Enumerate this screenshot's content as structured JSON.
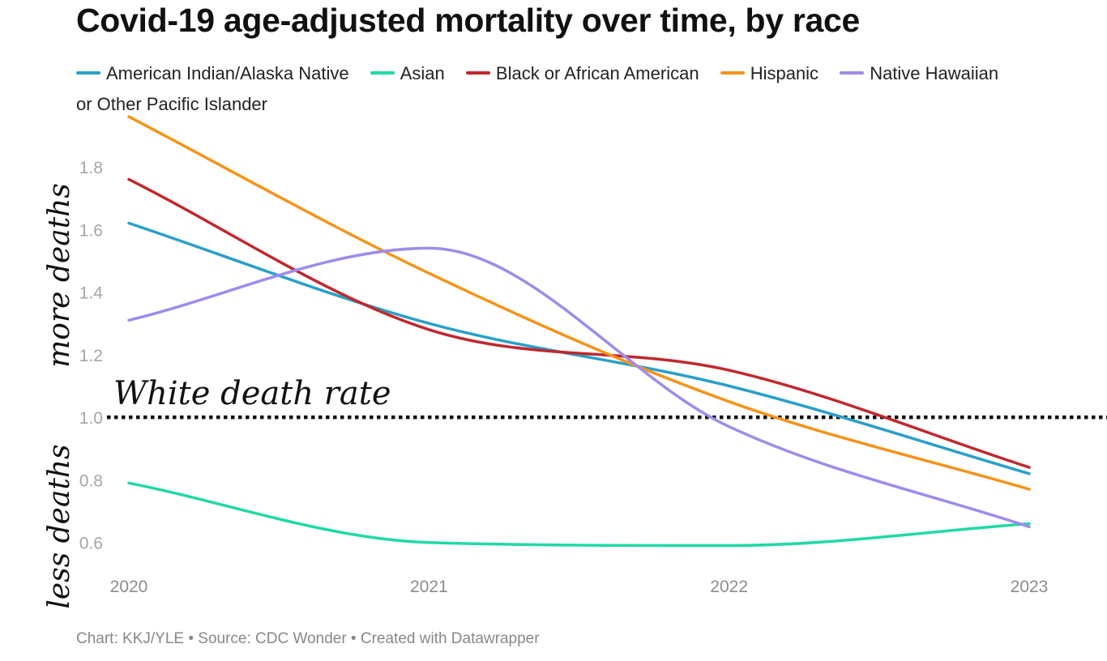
{
  "title": "Covid-19 age-adjusted mortality over time, by race",
  "footer": "Chart: KKJ/YLE • Source: CDC Wonder • Created with Datawrapper",
  "annotations": {
    "more": "more deaths",
    "less": "less deaths",
    "reference": "White death rate"
  },
  "chart_data": {
    "type": "line",
    "x": [
      2020,
      2021,
      2022,
      2023
    ],
    "x_tick_labels": [
      "2020",
      "2021",
      "2022",
      "2023"
    ],
    "y_ticks": [
      "0.6",
      "0.8",
      "1.0",
      "1.2",
      "1.4",
      "1.6",
      "1.8"
    ],
    "ylim": [
      0.55,
      1.95
    ],
    "reference_line": 1.0,
    "grid": false,
    "legend_position": "top-left",
    "series": [
      {
        "name": "American Indian/Alaska Native",
        "color": "#2A9FC9",
        "values": [
          1.62,
          1.3,
          1.1,
          0.82
        ]
      },
      {
        "name": "Asian",
        "color": "#21D9A7",
        "values": [
          0.79,
          0.6,
          0.59,
          0.66
        ]
      },
      {
        "name": "Black or African American",
        "color": "#C0282D",
        "values": [
          1.76,
          1.28,
          1.15,
          0.84
        ]
      },
      {
        "name": "Hispanic",
        "color": "#F5931A",
        "values": [
          1.96,
          1.46,
          1.05,
          0.77
        ]
      },
      {
        "name": "Native Hawaiian or Other Pacific Islander",
        "color": "#A08BEA",
        "values": [
          1.31,
          1.54,
          0.97,
          0.65
        ]
      }
    ]
  }
}
